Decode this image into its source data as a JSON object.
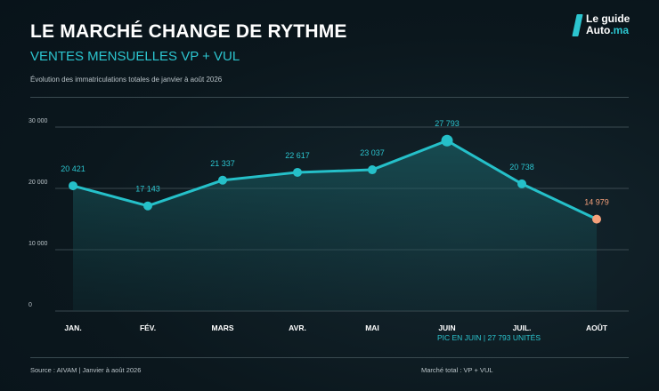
{
  "header": {
    "title": "LE MARCHÉ CHANGE DE RYTHME",
    "subtitle": "VENTES MENSUELLES VP + VUL",
    "caption": "Évolution des immatriculations totales de janvier à août 2026"
  },
  "logo": {
    "line1": "Le guide",
    "line2": "Auto",
    "line2_suffix": ".ma"
  },
  "chart_data": {
    "type": "area",
    "categories": [
      "JAN.",
      "FÉV.",
      "MARS",
      "AVR.",
      "MAI",
      "JUIN",
      "JUIL.",
      "AOÛT"
    ],
    "values": [
      20421,
      17143,
      21337,
      22617,
      23037,
      27793,
      20738,
      14979
    ],
    "value_labels": [
      "20 421",
      "17 143",
      "21 337",
      "22 617",
      "23 037",
      "27 793",
      "20 738",
      "14 979"
    ],
    "yticks": [
      0,
      10000,
      20000,
      30000
    ],
    "ytick_labels": [
      "0",
      "10 000",
      "20 000",
      "30 000"
    ],
    "ylim": [
      0,
      30000
    ],
    "grid": true,
    "highlight_index": 7,
    "annotation": "PIC EN JUIN  |  27 793 UNITÉS",
    "colors": {
      "line": "#25c0c9",
      "fill": "#1d6f74",
      "highlight": "#f5a07a",
      "label": "#2cc5cf",
      "grid": "#4b5a60"
    }
  },
  "footer": {
    "source": "Source : AIVAM | Janvier à août 2026",
    "market": "Marché total : VP + VUL"
  }
}
